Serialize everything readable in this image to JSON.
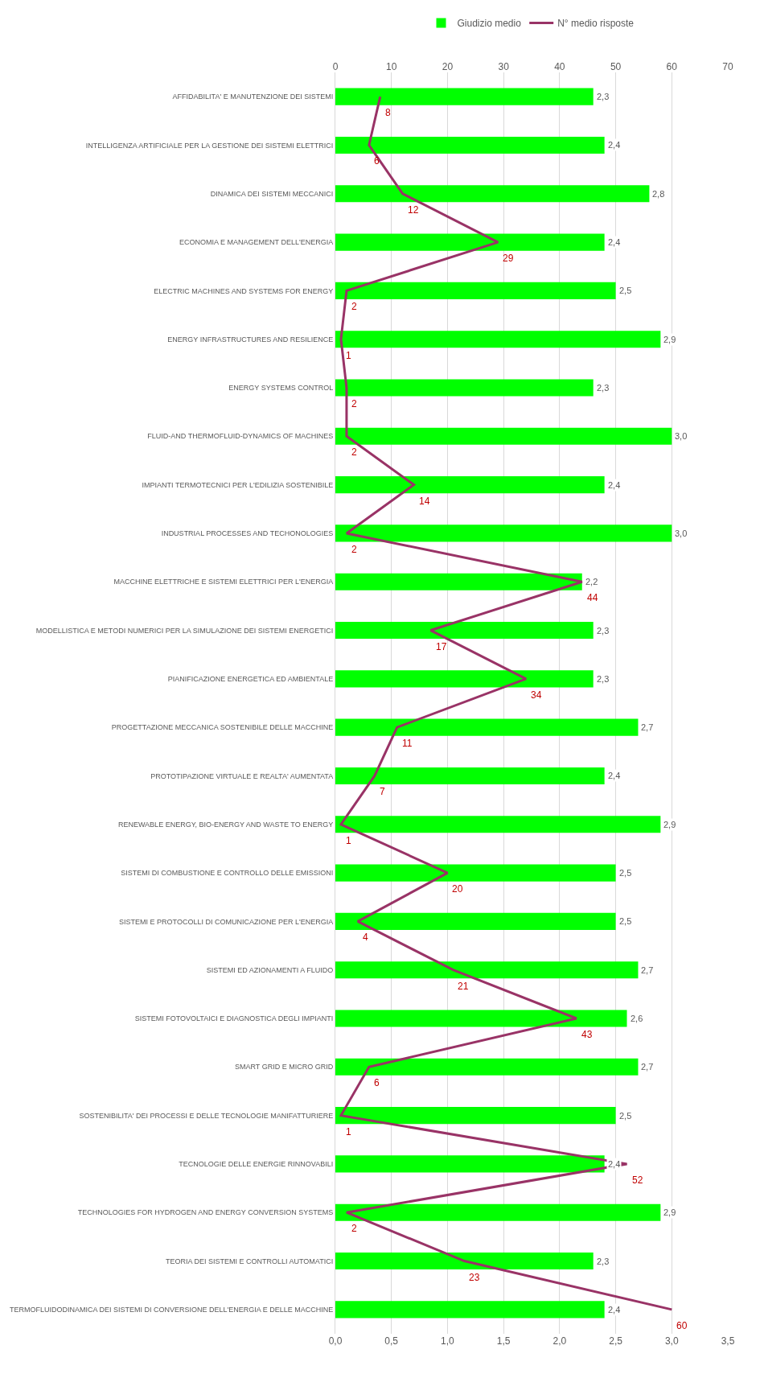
{
  "chart_data": {
    "type": "bar",
    "orientation": "horizontal",
    "categories": [
      "AFFIDABILITA' E MANUTENZIONE DEI SISTEMI",
      "INTELLIGENZA ARTIFICIALE PER LA GESTIONE DEI SISTEMI ELETTRICI",
      "DINAMICA DEI SISTEMI MECCANICI",
      "ECONOMIA E MANAGEMENT DELL'ENERGIA",
      "ELECTRIC MACHINES AND SYSTEMS FOR ENERGY",
      "ENERGY INFRASTRUCTURES AND RESILIENCE",
      "ENERGY SYSTEMS CONTROL",
      "FLUID-AND THERMOFLUID-DYNAMICS OF MACHINES",
      "IMPIANTI TERMOTECNICI PER L'EDILIZIA SOSTENIBILE",
      "INDUSTRIAL PROCESSES AND TECHONOLOGIES",
      "MACCHINE ELETTRICHE E SISTEMI ELETTRICI PER L'ENERGIA",
      "MODELLISTICA E METODI NUMERICI PER LA SIMULAZIONE DEI SISTEMI ENERGETICI",
      "PIANIFICAZIONE ENERGETICA ED AMBIENTALE",
      "PROGETTAZIONE MECCANICA SOSTENIBILE DELLE MACCHINE",
      "PROTOTIPAZIONE VIRTUALE E REALTA' AUMENTATA",
      "RENEWABLE ENERGY, BIO-ENERGY AND WASTE TO ENERGY",
      "SISTEMI DI COMBUSTIONE E CONTROLLO DELLE EMISSIONI",
      "SISTEMI E PROTOCOLLI DI COMUNICAZIONE PER L'ENERGIA",
      "SISTEMI ED AZIONAMENTI A FLUIDO",
      "SISTEMI FOTOVOLTAICI E DIAGNOSTICA DEGLI IMPIANTI",
      "SMART GRID E MICRO GRID",
      "SOSTENIBILITA' DEI PROCESSI E DELLE TECNOLOGIE MANIFATTURIERE",
      "TECNOLOGIE DELLE ENERGIE RINNOVABILI",
      "TECHNOLOGIES FOR HYDROGEN AND ENERGY CONVERSION SYSTEMS",
      "TEORIA DEI SISTEMI E CONTROLLI AUTOMATICI",
      "TERMOFLUIDODINAMICA DEI SISTEMI DI CONVERSIONE DELL'ENERGIA E DELLE MACCHINE"
    ],
    "series": [
      {
        "name": "Giudizio medio",
        "color": "#00ff00",
        "values": [
          2.3,
          2.4,
          2.8,
          2.4,
          2.5,
          2.9,
          2.3,
          3.0,
          2.4,
          3.0,
          2.2,
          2.3,
          2.3,
          2.7,
          2.4,
          2.9,
          2.5,
          2.5,
          2.7,
          2.6,
          2.7,
          2.5,
          2.4,
          2.9,
          2.3,
          2.4
        ],
        "value_labels": [
          "2,3",
          "2,4",
          "2,8",
          "2,4",
          "2,5",
          "2,9",
          "2,3",
          "3,0",
          "2,4",
          "3,0",
          "2,2",
          "2,3",
          "2,3",
          "2,7",
          "2,4",
          "2,9",
          "2,5",
          "2,5",
          "2,7",
          "2,6",
          "2,7",
          "2,5",
          "2,4",
          "2,9",
          "2,3",
          "2,4"
        ]
      },
      {
        "name": "N° medio risposte",
        "type": "line",
        "axis": "x2",
        "color": "#993366",
        "values": [
          8,
          6,
          12,
          29,
          2,
          1,
          2,
          2,
          14,
          2,
          44,
          17,
          34,
          11,
          7,
          1,
          20,
          4,
          21,
          43,
          6,
          1,
          52,
          2,
          23,
          60
        ],
        "value_labels": [
          "8",
          "6",
          "12",
          "29",
          "2",
          "1",
          "2",
          "2",
          "14",
          "2",
          "44",
          "17",
          "34",
          "11",
          "7",
          "1",
          "20",
          "4",
          "21",
          "43",
          "6",
          "1",
          "52",
          "2",
          "23",
          "60"
        ]
      }
    ],
    "xlim": [
      0,
      3.5
    ],
    "xticks": [
      {
        "value": 0,
        "label": "0,0"
      },
      {
        "value": 0.5,
        "label": "0,5"
      },
      {
        "value": 1,
        "label": "1,0"
      },
      {
        "value": 1.5,
        "label": "1,5"
      },
      {
        "value": 2,
        "label": "2,0"
      },
      {
        "value": 2.5,
        "label": "2,5"
      },
      {
        "value": 3,
        "label": "3,0"
      },
      {
        "value": 3.5,
        "label": "3,5"
      }
    ],
    "x2lim": [
      0,
      70
    ],
    "x2ticks": [
      0,
      10,
      20,
      30,
      40,
      50,
      60,
      70
    ],
    "grid": "x",
    "legend": "top"
  }
}
